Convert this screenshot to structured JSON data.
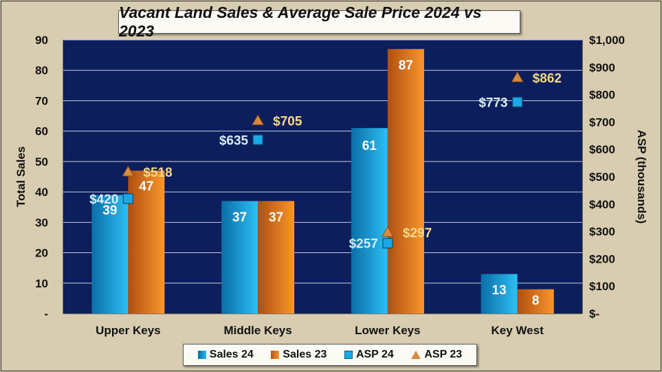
{
  "chart_data": {
    "type": "bar",
    "title": "Vacant Land Sales & Average Sale Price 2024 vs 2023",
    "categories": [
      "Upper Keys",
      "Middle Keys",
      "Lower Keys",
      "Key West"
    ],
    "ylabel": "Total Sales",
    "y2label": "ASP (thousands)",
    "ylim": [
      0,
      90
    ],
    "y2lim": [
      0,
      1000
    ],
    "yticks": [
      "-",
      "10",
      "20",
      "30",
      "40",
      "50",
      "60",
      "70",
      "80",
      "90"
    ],
    "y2ticks": [
      "$-",
      "$100",
      "$200",
      "$300",
      "$400",
      "$500",
      "$600",
      "$700",
      "$800",
      "$900",
      "$1,000"
    ],
    "grid": true,
    "legend_position": "bottom",
    "series": [
      {
        "name": "Sales 24",
        "kind": "bar",
        "values": [
          39,
          37,
          61,
          13
        ],
        "labels": [
          "39",
          "37",
          "61",
          "13"
        ],
        "color": "#29b6ee"
      },
      {
        "name": "Sales 23",
        "kind": "bar",
        "values": [
          47,
          37,
          87,
          8
        ],
        "labels": [
          "47",
          "37",
          "87",
          "8"
        ],
        "color": "#f7932a"
      },
      {
        "name": "ASP 24",
        "kind": "marker-square",
        "axis": "y2",
        "values": [
          420,
          635,
          257,
          773
        ],
        "labels": [
          "$420",
          "$635",
          "$257",
          "$773"
        ],
        "color": "#1aa9e6"
      },
      {
        "name": "ASP 23",
        "kind": "marker-triangle",
        "axis": "y2",
        "values": [
          518,
          705,
          297,
          862
        ],
        "labels": [
          "$518",
          "$705",
          "$297",
          "$862"
        ],
        "color": "#d98a3e"
      }
    ]
  },
  "colors": {
    "plot_bg": "#0c1e5b",
    "grid": "#c9cde0",
    "label_light": "#ffffff",
    "label_asp23": "#f6d98a",
    "label_asp24": "#d8ecff"
  }
}
